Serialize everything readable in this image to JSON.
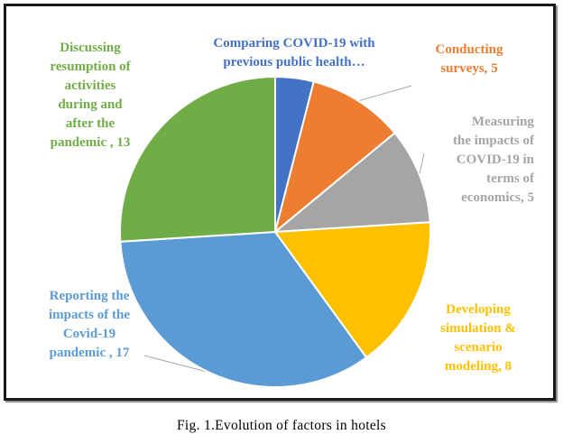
{
  "chart_data": {
    "type": "pie",
    "slices": [
      {
        "label": "Comparing COVID-19 with previous public health…",
        "value": 2,
        "color": "#4472c4",
        "label_lines": [
          "Comparing COVID-19 with",
          "previous public health…"
        ]
      },
      {
        "label": "Conducting surveys",
        "value": 5,
        "color": "#ed7d31",
        "label_lines": [
          "Conducting",
          "surveys, 5"
        ]
      },
      {
        "label": "Measuring the impacts of COVID-19 in terms of economics",
        "value": 5,
        "color": "#a5a5a5",
        "label_lines": [
          "Measuring",
          "the impacts of",
          "COVID-19 in",
          "terms of",
          "economics, 5"
        ]
      },
      {
        "label": "Developing simulation & scenario modeling",
        "value": 8,
        "color": "#ffc000",
        "label_lines": [
          "Developing",
          "simulation &",
          "scenario",
          "modeling, 8"
        ]
      },
      {
        "label": "Reporting the impacts of the Covid-19 pandemic",
        "value": 17,
        "color": "#5b9bd5",
        "label_lines": [
          "Reporting the",
          "impacts of the",
          "Covid-19",
          "pandemic , 17"
        ]
      },
      {
        "label": "Discussing resumption of activities during and after the pandemic",
        "value": 13,
        "color": "#70ad47",
        "label_lines": [
          "Discussing",
          "resumption of",
          "activities",
          "during and",
          "after the",
          "pandemic , 13"
        ]
      }
    ],
    "start_angle": "12 o'clock",
    "direction": "clockwise"
  },
  "caption": "Fig. 1.Evolution of factors in hotels"
}
